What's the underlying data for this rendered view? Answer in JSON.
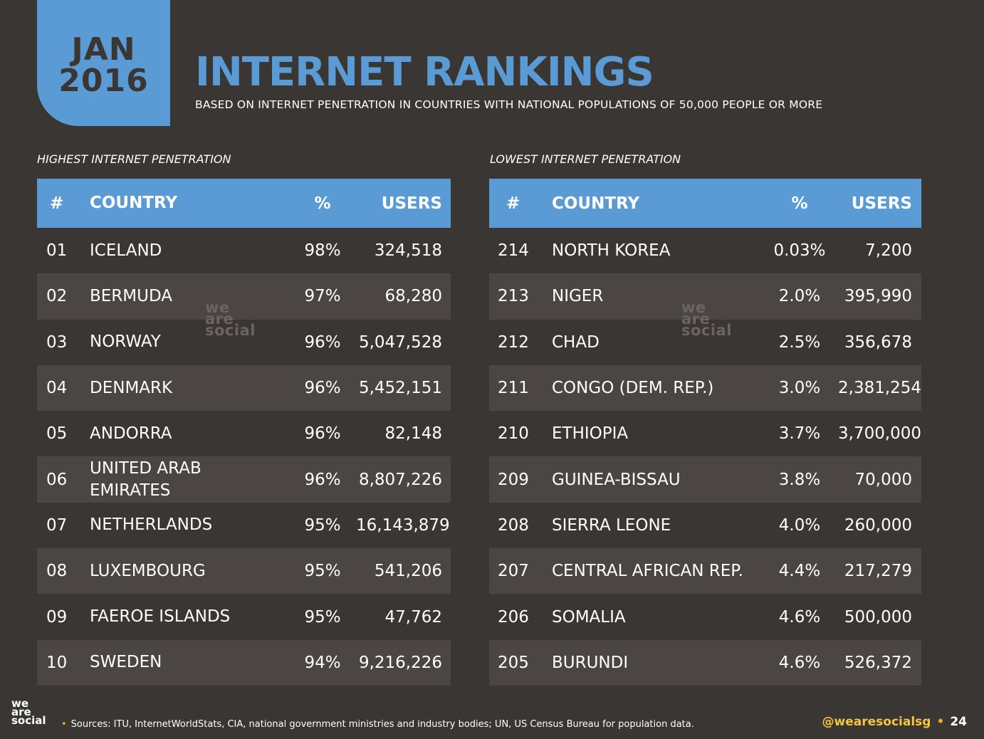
{
  "date_tab": {
    "month": "JAN",
    "year": "2016"
  },
  "title": "INTERNET RANKINGS",
  "subtitle": "BASED ON INTERNET PENETRATION IN COUNTRIES WITH NATIONAL POPULATIONS OF 50,000 PEOPLE OR MORE",
  "highest": {
    "label": "HIGHEST INTERNET PENETRATION",
    "headers": {
      "num": "#",
      "country": "COUNTRY",
      "pct": "%",
      "users": "USERS"
    },
    "rows": [
      {
        "num": "01",
        "country": "ICELAND",
        "pct": "98%",
        "users": "324,518"
      },
      {
        "num": "02",
        "country": "BERMUDA",
        "pct": "97%",
        "users": "68,280"
      },
      {
        "num": "03",
        "country": "NORWAY",
        "pct": "96%",
        "users": "5,047,528"
      },
      {
        "num": "04",
        "country": "DENMARK",
        "pct": "96%",
        "users": "5,452,151"
      },
      {
        "num": "05",
        "country": "ANDORRA",
        "pct": "96%",
        "users": "82,148"
      },
      {
        "num": "06",
        "country": "UNITED ARAB EMIRATES",
        "pct": "96%",
        "users": "8,807,226"
      },
      {
        "num": "07",
        "country": "NETHERLANDS",
        "pct": "95%",
        "users": "16,143,879"
      },
      {
        "num": "08",
        "country": "LUXEMBOURG",
        "pct": "95%",
        "users": "541,206"
      },
      {
        "num": "09",
        "country": "FAEROE ISLANDS",
        "pct": "95%",
        "users": "47,762"
      },
      {
        "num": "10",
        "country": "SWEDEN",
        "pct": "94%",
        "users": "9,216,226"
      }
    ]
  },
  "lowest": {
    "label": "LOWEST INTERNET PENETRATION",
    "headers": {
      "num": "#",
      "country": "COUNTRY",
      "pct": "%",
      "users": "USERS"
    },
    "rows": [
      {
        "num": "214",
        "country": "NORTH KOREA",
        "pct": "0.03%",
        "users": "7,200"
      },
      {
        "num": "213",
        "country": "NIGER",
        "pct": "2.0%",
        "users": "395,990"
      },
      {
        "num": "212",
        "country": "CHAD",
        "pct": "2.5%",
        "users": "356,678"
      },
      {
        "num": "211",
        "country": "CONGO (DEM. REP.)",
        "pct": "3.0%",
        "users": "2,381,254"
      },
      {
        "num": "210",
        "country": "ETHIOPIA",
        "pct": "3.7%",
        "users": "3,700,000"
      },
      {
        "num": "209",
        "country": "GUINEA-BISSAU",
        "pct": "3.8%",
        "users": "70,000"
      },
      {
        "num": "208",
        "country": "SIERRA LEONE",
        "pct": "4.0%",
        "users": "260,000"
      },
      {
        "num": "207",
        "country": "CENTRAL AFRICAN REP.",
        "pct": "4.4%",
        "users": "217,279"
      },
      {
        "num": "206",
        "country": "SOMALIA",
        "pct": "4.6%",
        "users": "500,000"
      },
      {
        "num": "205",
        "country": "BURUNDI",
        "pct": "4.6%",
        "users": "526,372"
      }
    ]
  },
  "watermark": {
    "line1": "we",
    "line2": "are",
    "line3": "social"
  },
  "footer": {
    "logo": {
      "line1": "we",
      "line2": "are",
      "line3": "social"
    },
    "source_bullet": "•",
    "source": "Sources: ITU, InternetWorldStats, CIA, national government ministries and industry bodies; UN, US Census Bureau for population data.",
    "handle": "@wearesocialsg",
    "handle_bullet": "•",
    "page": "24"
  },
  "colors": {
    "background": "#3a3633",
    "accent": "#5b9bd5",
    "row_alt": "#4b4543",
    "footer_accent": "#f5a623"
  }
}
